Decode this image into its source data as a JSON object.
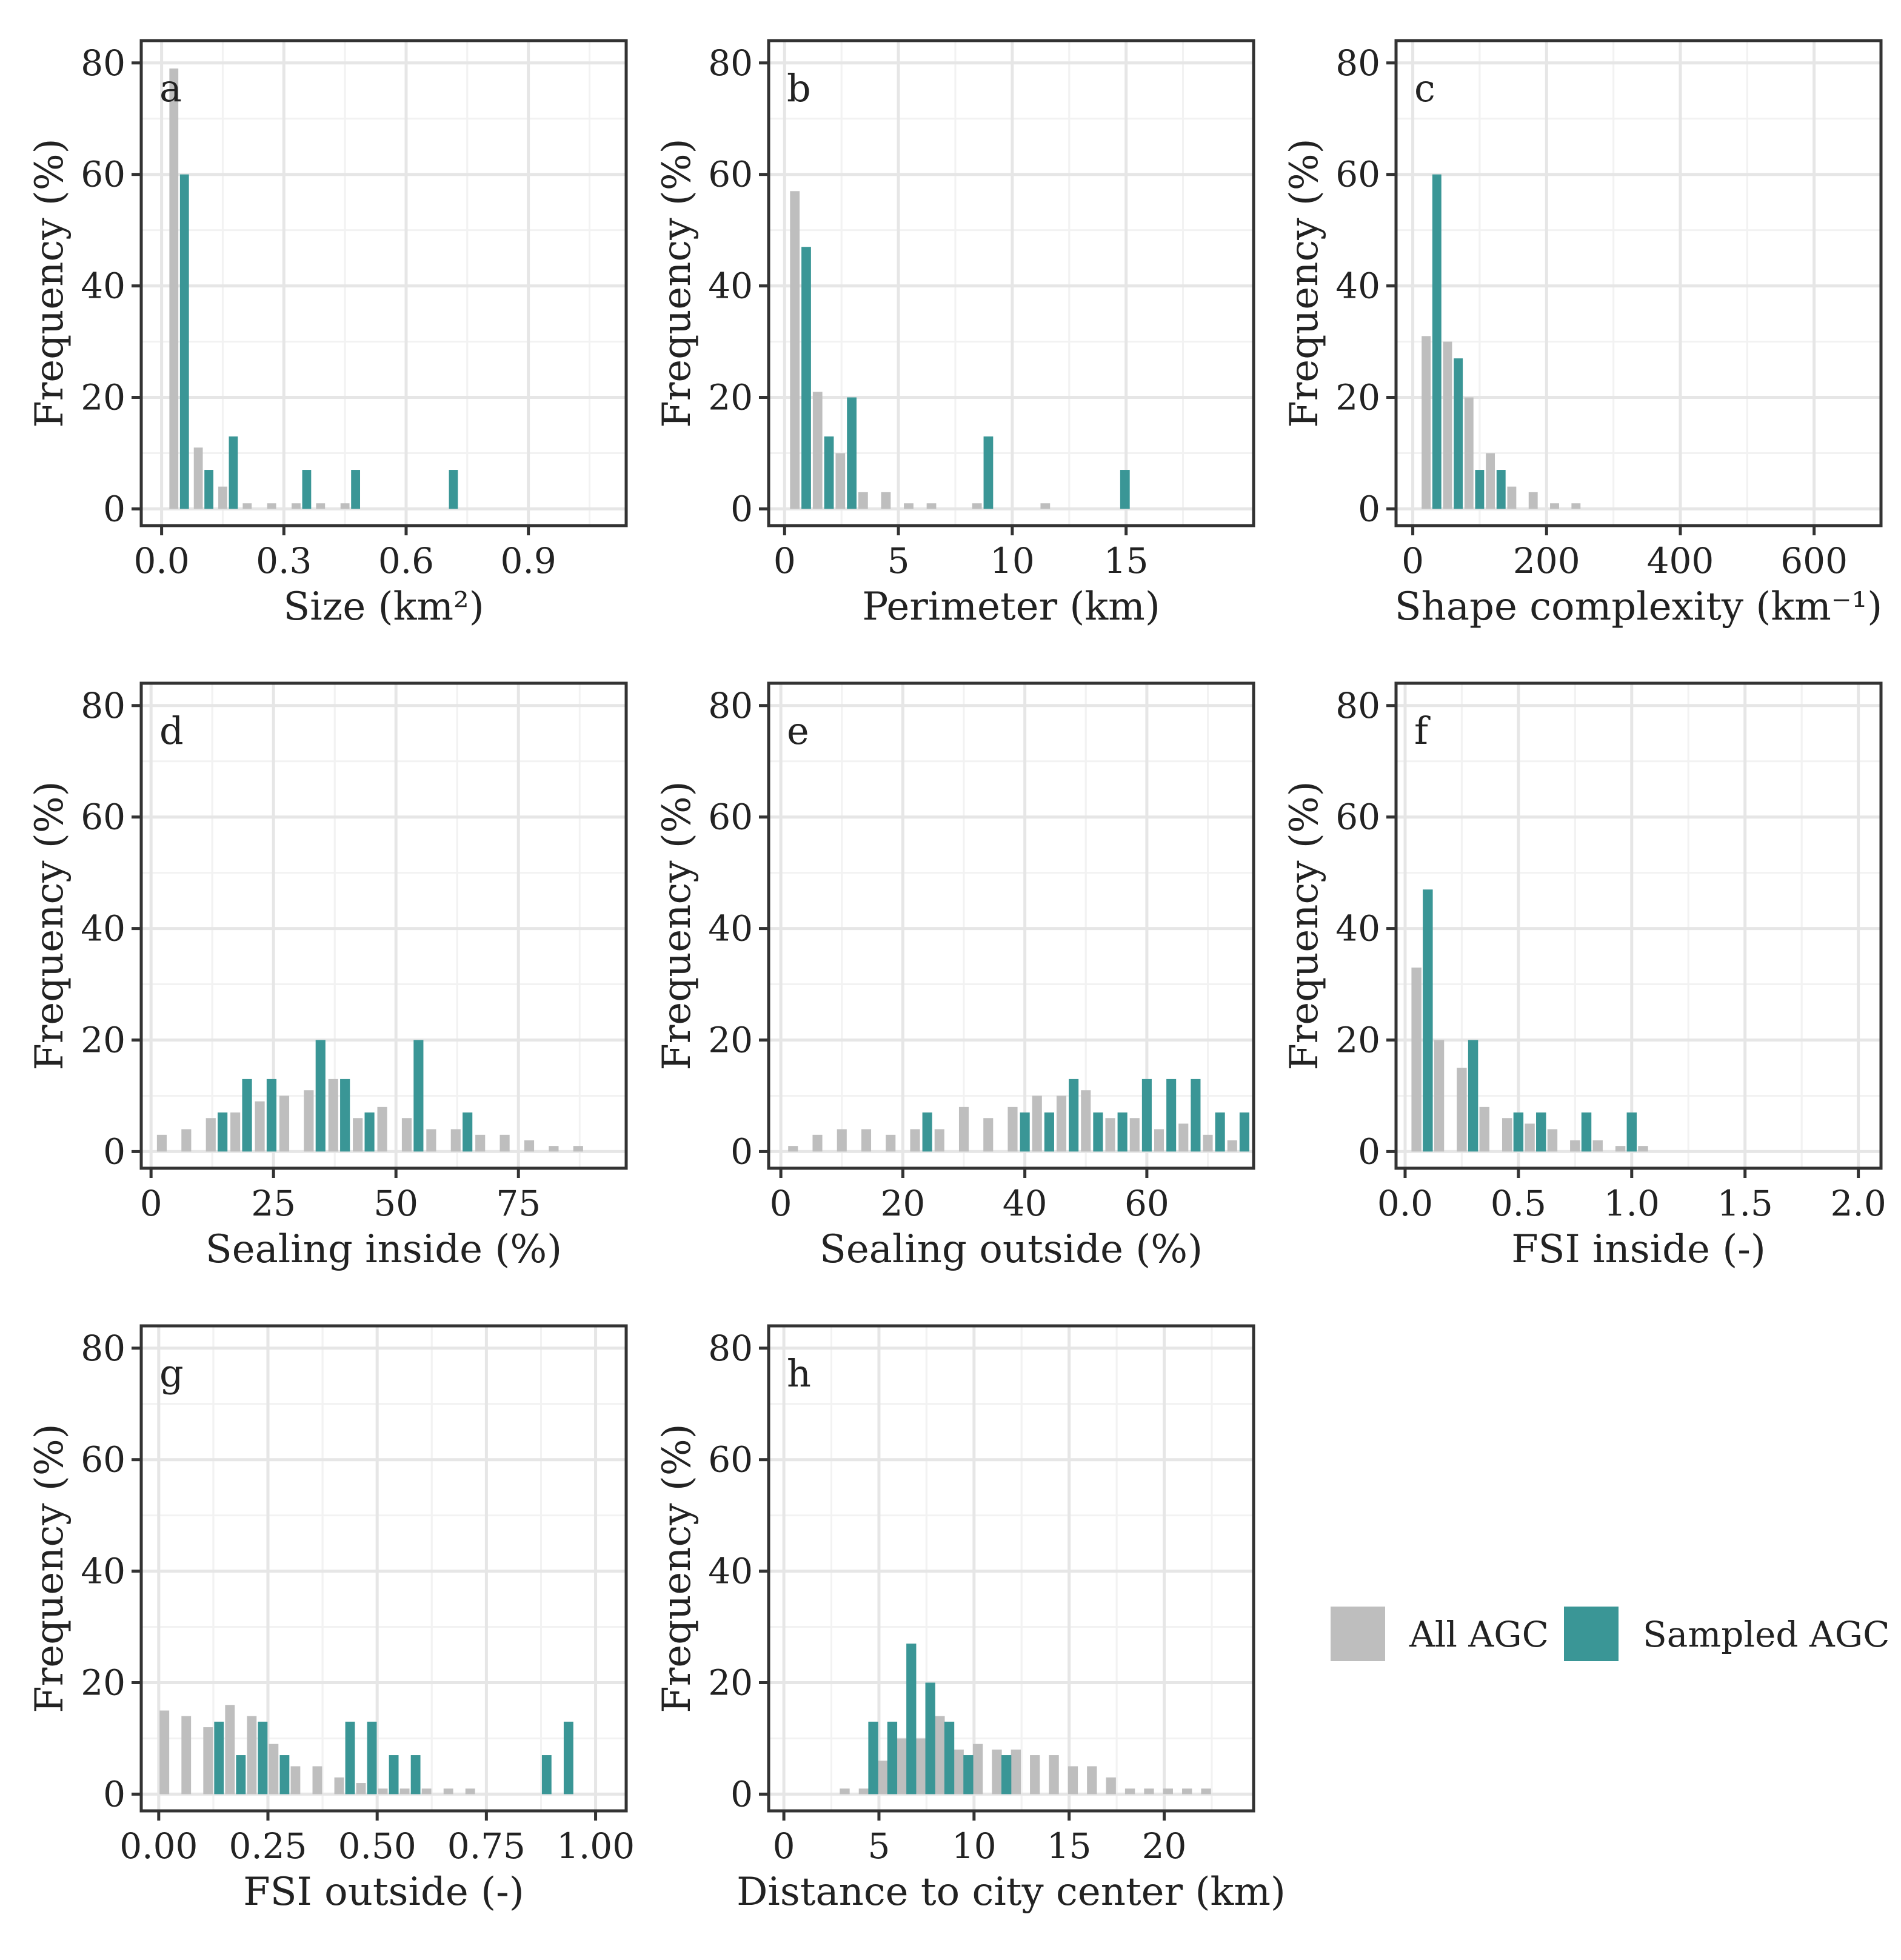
{
  "legend": {
    "items": [
      {
        "label": "All AGC",
        "color": "#bebebe"
      },
      {
        "label": "Sampled AGC",
        "color": "#3a9696"
      }
    ]
  },
  "chart_data": [
    {
      "panel": "a",
      "type": "bar",
      "xlabel": "Size (km²)",
      "ylabel": "Frequency (%)",
      "xlim": [
        -0.05,
        1.14
      ],
      "ylim": [
        -3,
        84
      ],
      "xticks": [
        0.0,
        0.3,
        0.6,
        0.9
      ],
      "xtick_labels": [
        "0.0",
        "0.3",
        "0.6",
        "0.9"
      ],
      "yticks": [
        0,
        20,
        40,
        60,
        80
      ],
      "bar_width": 0.022,
      "series": [
        {
          "name": "All AGC",
          "x": [
            0.03,
            0.09,
            0.15,
            0.21,
            0.27,
            0.33,
            0.39,
            0.45
          ],
          "values": [
            79,
            11,
            4,
            1,
            1,
            1,
            1,
            1
          ]
        },
        {
          "name": "Sampled AGC",
          "x": [
            0.056,
            0.116,
            0.176,
            0.356,
            0.476,
            0.716
          ],
          "values": [
            60,
            7,
            13,
            7,
            7,
            7
          ]
        }
      ]
    },
    {
      "panel": "b",
      "type": "bar",
      "xlabel": "Perimeter (km)",
      "ylabel": "Frequency (%)",
      "xlim": [
        -0.7,
        20.6
      ],
      "ylim": [
        -3,
        84
      ],
      "xticks": [
        0,
        5,
        10,
        15
      ],
      "xtick_labels": [
        "0",
        "5",
        "10",
        "15"
      ],
      "yticks": [
        0,
        20,
        40,
        60,
        80
      ],
      "bar_width": 0.42,
      "series": [
        {
          "name": "All AGC",
          "x": [
            0.45,
            1.45,
            2.45,
            3.45,
            4.45,
            5.45,
            6.45,
            8.45,
            11.45
          ],
          "values": [
            57,
            21,
            10,
            3,
            3,
            1,
            1,
            1,
            1
          ]
        },
        {
          "name": "Sampled AGC",
          "x": [
            0.95,
            1.95,
            2.95,
            8.95,
            14.95
          ],
          "values": [
            47,
            13,
            20,
            13,
            7
          ]
        }
      ]
    },
    {
      "panel": "c",
      "type": "bar",
      "xlabel": "Shape complexity (km⁻¹)",
      "ylabel": "Frequency (%)",
      "xlim": [
        -25,
        700
      ],
      "ylim": [
        -3,
        84
      ],
      "xticks": [
        0,
        200,
        400,
        600
      ],
      "xtick_labels": [
        "0",
        "200",
        "400",
        "600"
      ],
      "yticks": [
        0,
        20,
        40,
        60,
        80
      ],
      "bar_width": 13.5,
      "series": [
        {
          "name": "All AGC",
          "x": [
            20,
            52,
            84,
            116,
            148,
            180,
            212,
            244
          ],
          "values": [
            31,
            30,
            20,
            10,
            4,
            3,
            1,
            1
          ]
        },
        {
          "name": "Sampled AGC",
          "x": [
            36,
            68,
            100,
            132
          ],
          "values": [
            60,
            27,
            7,
            7
          ]
        }
      ]
    },
    {
      "panel": "d",
      "type": "bar",
      "xlabel": "Sealing inside (%)",
      "ylabel": "Frequency (%)",
      "xlim": [
        -2,
        97
      ],
      "ylim": [
        -3,
        84
      ],
      "xticks": [
        0,
        25,
        50,
        75
      ],
      "xtick_labels": [
        "0",
        "25",
        "50",
        "75"
      ],
      "yticks": [
        0,
        20,
        40,
        60,
        80
      ],
      "bar_width": 2.0,
      "series": [
        {
          "name": "All AGC",
          "x": [
            2.2,
            7.2,
            12.2,
            17.2,
            22.2,
            27.2,
            32.2,
            37.2,
            42.2,
            47.2,
            52.2,
            57.2,
            62.2,
            67.2,
            72.2,
            77.2,
            82.2,
            87.2
          ],
          "values": [
            3,
            4,
            6,
            7,
            9,
            10,
            11,
            13,
            6,
            8,
            6,
            4,
            4,
            3,
            3,
            2,
            1,
            1
          ]
        },
        {
          "name": "Sampled AGC",
          "x": [
            14.6,
            19.6,
            24.6,
            34.6,
            39.6,
            44.6,
            54.6,
            64.6
          ],
          "values": [
            7,
            13,
            13,
            20,
            13,
            7,
            20,
            7
          ]
        }
      ]
    },
    {
      "panel": "e",
      "type": "bar",
      "xlabel": "Sealing outside (%)",
      "ylabel": "Frequency (%)",
      "xlim": [
        -2,
        77.5
      ],
      "ylim": [
        -3,
        84
      ],
      "xticks": [
        0,
        20,
        40,
        60
      ],
      "xtick_labels": [
        "0",
        "20",
        "40",
        "60"
      ],
      "yticks": [
        0,
        20,
        40,
        60,
        80
      ],
      "bar_width": 1.6,
      "series": [
        {
          "name": "All AGC",
          "x": [
            2,
            6,
            10,
            14,
            18,
            22,
            26,
            30,
            34,
            38,
            42,
            46,
            50,
            54,
            58,
            62,
            66,
            70,
            74
          ],
          "values": [
            1,
            3,
            4,
            4,
            3,
            4,
            4,
            8,
            6,
            8,
            10,
            10,
            11,
            6,
            6,
            4,
            5,
            3,
            2
          ]
        },
        {
          "name": "Sampled AGC",
          "x": [
            24,
            40,
            44,
            48,
            52,
            56,
            60,
            64,
            68,
            72,
            76
          ],
          "values": [
            7,
            7,
            7,
            13,
            7,
            7,
            13,
            13,
            13,
            7,
            7
          ]
        }
      ]
    },
    {
      "panel": "f",
      "type": "bar",
      "xlabel": "FSI inside (-)",
      "ylabel": "Frequency (%)",
      "xlim": [
        -0.04,
        2.1
      ],
      "ylim": [
        -3,
        84
      ],
      "xticks": [
        0.0,
        0.5,
        1.0,
        1.5,
        2.0
      ],
      "xtick_labels": [
        "0.0",
        "0.5",
        "1.0",
        "1.5",
        "2.0"
      ],
      "yticks": [
        0,
        20,
        40,
        60,
        80
      ],
      "bar_width": 0.044,
      "series": [
        {
          "name": "All AGC",
          "x": [
            0.05,
            0.15,
            0.25,
            0.35,
            0.45,
            0.55,
            0.65,
            0.75,
            0.85,
            0.95,
            1.05
          ],
          "values": [
            33,
            20,
            15,
            8,
            6,
            5,
            4,
            2,
            2,
            1,
            1
          ]
        },
        {
          "name": "Sampled AGC",
          "x": [
            0.1,
            0.3,
            0.5,
            0.6,
            0.8,
            1.0
          ],
          "values": [
            47,
            20,
            7,
            7,
            7,
            7
          ]
        }
      ]
    },
    {
      "panel": "g",
      "type": "bar",
      "xlabel": "FSI outside (-)",
      "ylabel": "Frequency (%)",
      "xlim": [
        -0.04,
        1.07
      ],
      "ylim": [
        -3,
        84
      ],
      "xticks": [
        0.0,
        0.25,
        0.5,
        0.75,
        1.0
      ],
      "xtick_labels": [
        "0.00",
        "0.25",
        "0.50",
        "0.75",
        "1.00"
      ],
      "yticks": [
        0,
        20,
        40,
        60,
        80
      ],
      "bar_width": 0.022,
      "series": [
        {
          "name": "All AGC",
          "x": [
            0.013,
            0.063,
            0.113,
            0.163,
            0.213,
            0.263,
            0.313,
            0.363,
            0.413,
            0.463,
            0.513,
            0.563,
            0.613,
            0.663,
            0.713
          ],
          "values": [
            15,
            14,
            12,
            16,
            14,
            9,
            5,
            5,
            3,
            2,
            1,
            1,
            1,
            1,
            1
          ]
        },
        {
          "name": "Sampled AGC",
          "x": [
            0.138,
            0.188,
            0.238,
            0.288,
            0.438,
            0.488,
            0.538,
            0.588,
            0.888,
            0.938
          ],
          "values": [
            13,
            7,
            13,
            7,
            13,
            13,
            7,
            7,
            7,
            13
          ]
        }
      ]
    },
    {
      "panel": "h",
      "type": "bar",
      "xlabel": "Distance to city center (km)",
      "ylabel": "Frequency (%)",
      "xlim": [
        -0.8,
        24.7
      ],
      "ylim": [
        -3,
        84
      ],
      "xticks": [
        0,
        5,
        10,
        15,
        20
      ],
      "xtick_labels": [
        "0",
        "5",
        "10",
        "15",
        "20"
      ],
      "yticks": [
        0,
        20,
        40,
        60,
        80
      ],
      "bar_width": 0.52,
      "series": [
        {
          "name": "All AGC",
          "x": [
            3.2,
            4.2,
            5.2,
            6.2,
            7.2,
            8.2,
            9.2,
            10.2,
            11.2,
            12.2,
            13.2,
            14.2,
            15.2,
            16.2,
            17.2,
            18.2,
            19.2,
            20.2,
            21.2,
            22.2
          ],
          "values": [
            1,
            1,
            6,
            10,
            10,
            14,
            8,
            9,
            8,
            8,
            7,
            7,
            5,
            5,
            3,
            1,
            1,
            1,
            1,
            1
          ]
        },
        {
          "name": "Sampled AGC",
          "x": [
            4.7,
            5.7,
            6.7,
            7.7,
            8.7,
            9.7,
            11.7
          ],
          "values": [
            13,
            13,
            27,
            20,
            13,
            7,
            7
          ]
        }
      ]
    }
  ]
}
